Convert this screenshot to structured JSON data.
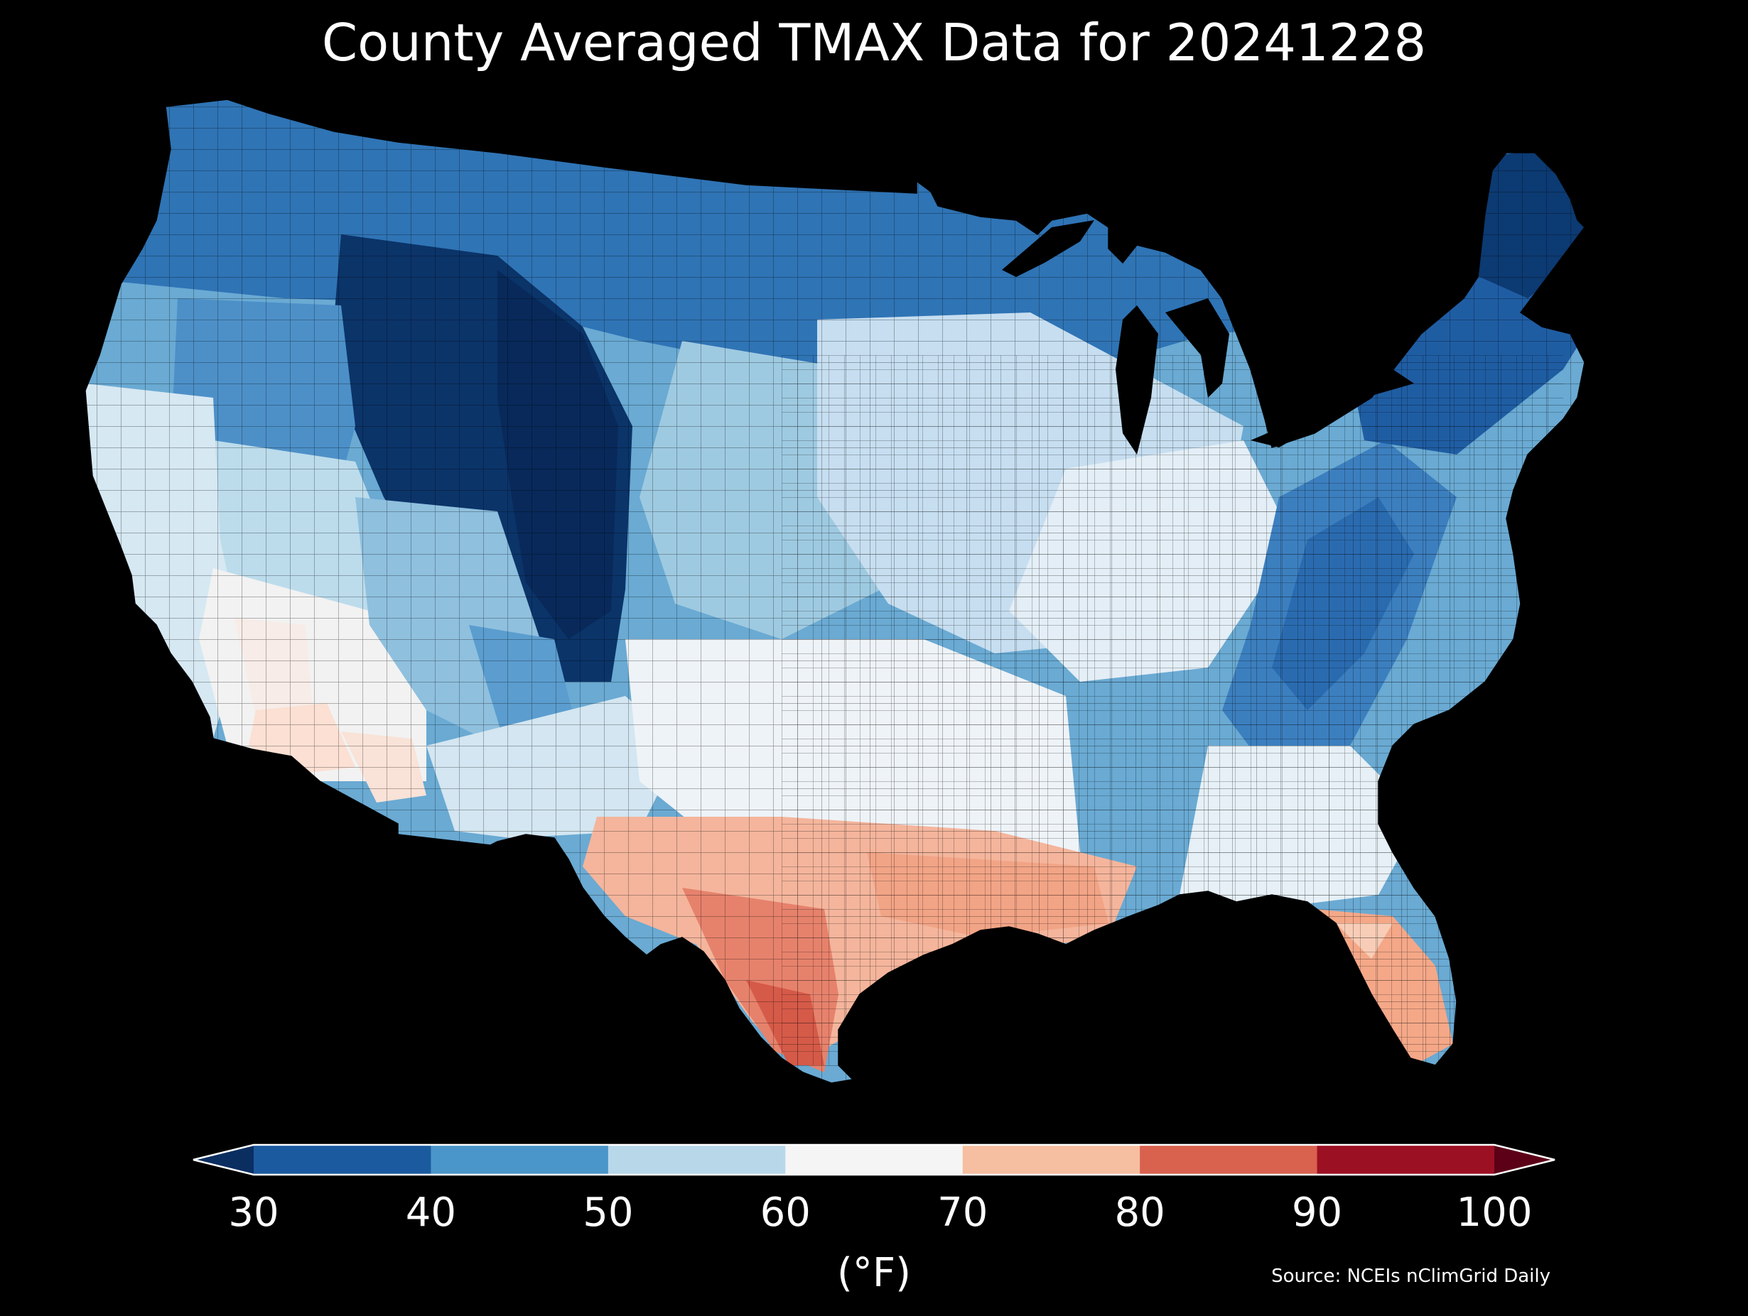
{
  "title": "County Averaged TMAX Data for 20241228",
  "legend": {
    "units": "(°F)",
    "ticks": [
      "30",
      "40",
      "50",
      "60",
      "70",
      "80",
      "90",
      "100"
    ],
    "bins": [
      {
        "color": "#0b2e61"
      },
      {
        "color": "#1c5aa0"
      },
      {
        "color": "#4a95c9"
      },
      {
        "color": "#b8d8ea"
      },
      {
        "color": "#f5f5f5"
      },
      {
        "color": "#f6bfa1"
      },
      {
        "color": "#d9624f"
      },
      {
        "color": "#9c1024"
      },
      {
        "color": "#5b0017"
      }
    ]
  },
  "source": "Source: NCEIs nClimGrid Daily",
  "background": "#000000"
}
